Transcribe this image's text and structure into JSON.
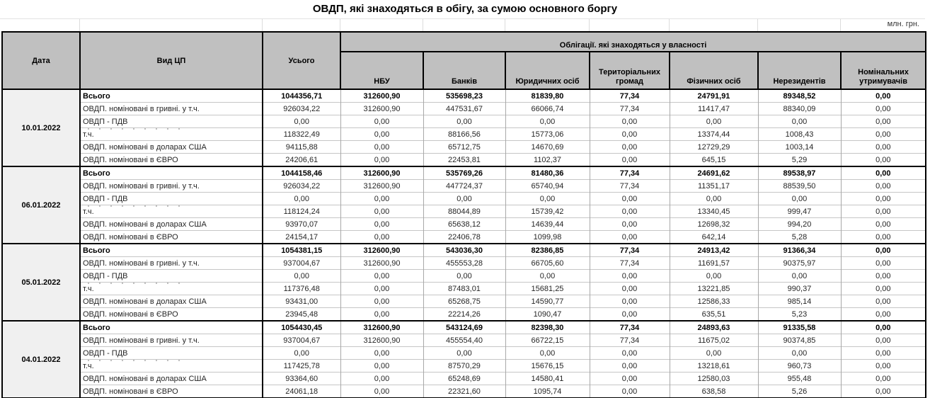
{
  "title": "ОВДП, які знаходяться в обігу, за сумою основного боргу",
  "units_note": "млн. грн.",
  "table": {
    "headers": {
      "date": "Дата",
      "type": "Вид ЦП",
      "total": "Усього",
      "ownership_group": "Облігації. які знаходяться у власності",
      "owners": [
        "НБУ",
        "Банків",
        "Юридичних осіб",
        "Територіальних громад",
        "Фізичних осіб",
        "Нерезидентів",
        "Номінальних утримувачів"
      ]
    },
    "blocks": [
      {
        "date": "10.01.2022",
        "rows": [
          {
            "label": "Всього",
            "total": true,
            "clipped": false,
            "values": [
              "1044356,71",
              "312600,90",
              "535698,23",
              "81839,80",
              "77,34",
              "24791,91",
              "89348,52",
              "0,00"
            ]
          },
          {
            "label": "ОВДП. номіновані в гривні. у т.ч.",
            "total": false,
            "clipped": false,
            "values": [
              "926034,22",
              "312600,90",
              "447531,67",
              "66066,74",
              "77,34",
              "11417,47",
              "88340,09",
              "0,00"
            ]
          },
          {
            "label": "ОВДП - ПДВ",
            "total": false,
            "clipped": false,
            "values": [
              "0,00",
              "0,00",
              "0,00",
              "0,00",
              "0,00",
              "0,00",
              "0,00",
              "0,00"
            ]
          },
          {
            "label": "т.ч.",
            "total": false,
            "clipped": true,
            "values": [
              "118322,49",
              "0,00",
              "88166,56",
              "15773,06",
              "0,00",
              "13374,44",
              "1008,43",
              "0,00"
            ]
          },
          {
            "label": "ОВДП. номіновані в доларах США",
            "total": false,
            "clipped": false,
            "values": [
              "94115,88",
              "0,00",
              "65712,75",
              "14670,69",
              "0,00",
              "12729,29",
              "1003,14",
              "0,00"
            ]
          },
          {
            "label": "ОВДП. номіновані в ЄВРО",
            "total": false,
            "clipped": false,
            "values": [
              "24206,61",
              "0,00",
              "22453,81",
              "1102,37",
              "0,00",
              "645,15",
              "5,29",
              "0,00"
            ]
          }
        ]
      },
      {
        "date": "06.01.2022",
        "rows": [
          {
            "label": "Всього",
            "total": true,
            "clipped": false,
            "values": [
              "1044158,46",
              "312600,90",
              "535769,26",
              "81480,36",
              "77,34",
              "24691,62",
              "89538,97",
              "0,00"
            ]
          },
          {
            "label": "ОВДП. номіновані в гривні. у т.ч.",
            "total": false,
            "clipped": false,
            "values": [
              "926034,22",
              "312600,90",
              "447724,37",
              "65740,94",
              "77,34",
              "11351,17",
              "88539,50",
              "0,00"
            ]
          },
          {
            "label": "ОВДП - ПДВ",
            "total": false,
            "clipped": false,
            "values": [
              "0,00",
              "0,00",
              "0,00",
              "0,00",
              "0,00",
              "0,00",
              "0,00",
              "0,00"
            ]
          },
          {
            "label": "т.ч.",
            "total": false,
            "clipped": true,
            "values": [
              "118124,24",
              "0,00",
              "88044,89",
              "15739,42",
              "0,00",
              "13340,45",
              "999,47",
              "0,00"
            ]
          },
          {
            "label": "ОВДП. номіновані в доларах США",
            "total": false,
            "clipped": false,
            "values": [
              "93970,07",
              "0,00",
              "65638,12",
              "14639,44",
              "0,00",
              "12698,32",
              "994,20",
              "0,00"
            ]
          },
          {
            "label": "ОВДП. номіновані в ЄВРО",
            "total": false,
            "clipped": false,
            "values": [
              "24154,17",
              "0,00",
              "22406,78",
              "1099,98",
              "0,00",
              "642,14",
              "5,28",
              "0,00"
            ]
          }
        ]
      },
      {
        "date": "05.01.2022",
        "rows": [
          {
            "label": "Всього",
            "total": true,
            "clipped": false,
            "values": [
              "1054381,15",
              "312600,90",
              "543036,30",
              "82386,85",
              "77,34",
              "24913,42",
              "91366,34",
              "0,00"
            ]
          },
          {
            "label": "ОВДП. номіновані в гривні. у т.ч.",
            "total": false,
            "clipped": false,
            "values": [
              "937004,67",
              "312600,90",
              "455553,28",
              "66705,60",
              "77,34",
              "11691,57",
              "90375,97",
              "0,00"
            ]
          },
          {
            "label": "ОВДП - ПДВ",
            "total": false,
            "clipped": false,
            "values": [
              "0,00",
              "0,00",
              "0,00",
              "0,00",
              "0,00",
              "0,00",
              "0,00",
              "0,00"
            ]
          },
          {
            "label": "т.ч.",
            "total": false,
            "clipped": true,
            "values": [
              "117376,48",
              "0,00",
              "87483,01",
              "15681,25",
              "0,00",
              "13221,85",
              "990,37",
              "0,00"
            ]
          },
          {
            "label": "ОВДП. номіновані в доларах США",
            "total": false,
            "clipped": false,
            "values": [
              "93431,00",
              "0,00",
              "65268,75",
              "14590,77",
              "0,00",
              "12586,33",
              "985,14",
              "0,00"
            ]
          },
          {
            "label": "ОВДП. номіновані в ЄВРО",
            "total": false,
            "clipped": false,
            "values": [
              "23945,48",
              "0,00",
              "22214,26",
              "1090,47",
              "0,00",
              "635,51",
              "5,23",
              "0,00"
            ]
          }
        ]
      },
      {
        "date": "04.01.2022",
        "rows": [
          {
            "label": "Всього",
            "total": true,
            "clipped": false,
            "values": [
              "1054430,45",
              "312600,90",
              "543124,69",
              "82398,30",
              "77,34",
              "24893,63",
              "91335,58",
              "0,00"
            ]
          },
          {
            "label": "ОВДП. номіновані в гривні. у т.ч.",
            "total": false,
            "clipped": false,
            "values": [
              "937004,67",
              "312600,90",
              "455554,40",
              "66722,15",
              "77,34",
              "11675,02",
              "90374,85",
              "0,00"
            ]
          },
          {
            "label": "ОВДП - ПДВ",
            "total": false,
            "clipped": false,
            "values": [
              "0,00",
              "0,00",
              "0,00",
              "0,00",
              "0,00",
              "0,00",
              "0,00",
              "0,00"
            ]
          },
          {
            "label": "т.ч.",
            "total": false,
            "clipped": true,
            "values": [
              "117425,78",
              "0,00",
              "87570,29",
              "15676,15",
              "0,00",
              "13218,61",
              "960,73",
              "0,00"
            ]
          },
          {
            "label": "ОВДП. номіновані в доларах США",
            "total": false,
            "clipped": false,
            "values": [
              "93364,60",
              "0,00",
              "65248,69",
              "14580,41",
              "0,00",
              "12580,03",
              "955,48",
              "0,00"
            ]
          },
          {
            "label": "ОВДП. номіновані в ЄВРО",
            "total": false,
            "clipped": false,
            "values": [
              "24061,18",
              "0,00",
              "22321,60",
              "1095,74",
              "0,00",
              "638,58",
              "5,26",
              "0,00"
            ]
          }
        ]
      }
    ]
  },
  "colors": {
    "header_bg": "#c0c0c0",
    "date_cell_bg": "#f0f0f0",
    "border_strong": "#000000",
    "border_light": "#c6c6c6"
  }
}
